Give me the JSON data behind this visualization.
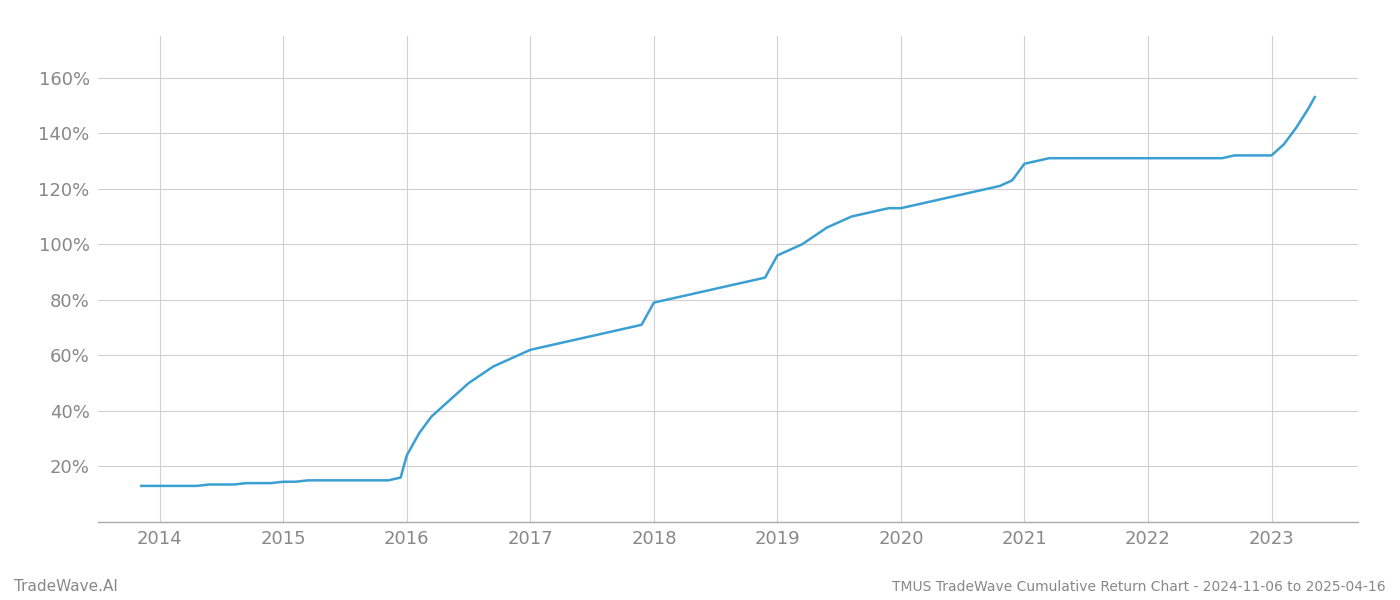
{
  "title": "TMUS TradeWave Cumulative Return Chart - 2024-11-06 to 2025-04-16",
  "watermark": "TradeWave.AI",
  "line_color": "#3a9fd1",
  "line_width": 1.8,
  "background_color": "#ffffff",
  "grid_color": "#d0d0d0",
  "x_labels": [
    "2014",
    "2015",
    "2016",
    "2017",
    "2018",
    "2019",
    "2020",
    "2021",
    "2022",
    "2023"
  ],
  "y_ticks": [
    20,
    40,
    60,
    80,
    100,
    120,
    140,
    160
  ],
  "ylim": [
    0,
    175
  ],
  "xlim": [
    2013.5,
    2023.7
  ],
  "data_x": [
    2013.85,
    2014.0,
    2014.1,
    2014.2,
    2014.3,
    2014.4,
    2014.5,
    2014.6,
    2014.7,
    2014.8,
    2014.9,
    2015.0,
    2015.1,
    2015.2,
    2015.3,
    2015.4,
    2015.5,
    2015.6,
    2015.65,
    2015.75,
    2015.85,
    2015.95,
    2016.0,
    2016.1,
    2016.2,
    2016.3,
    2016.4,
    2016.5,
    2016.6,
    2016.7,
    2016.8,
    2016.9,
    2017.0,
    2017.1,
    2017.2,
    2017.3,
    2017.4,
    2017.5,
    2017.6,
    2017.7,
    2017.8,
    2017.9,
    2018.0,
    2018.1,
    2018.2,
    2018.3,
    2018.4,
    2018.5,
    2018.6,
    2018.7,
    2018.8,
    2018.9,
    2019.0,
    2019.1,
    2019.2,
    2019.3,
    2019.4,
    2019.5,
    2019.6,
    2019.7,
    2019.8,
    2019.9,
    2020.0,
    2020.1,
    2020.2,
    2020.3,
    2020.4,
    2020.5,
    2020.6,
    2020.7,
    2020.8,
    2020.9,
    2021.0,
    2021.1,
    2021.2,
    2021.3,
    2021.4,
    2021.5,
    2021.6,
    2021.7,
    2021.8,
    2021.9,
    2022.0,
    2022.1,
    2022.2,
    2022.3,
    2022.4,
    2022.5,
    2022.6,
    2022.7,
    2022.8,
    2022.9,
    2023.0,
    2023.1,
    2023.2,
    2023.3,
    2023.35
  ],
  "data_y": [
    13,
    13,
    13,
    13,
    13,
    13.5,
    13.5,
    13.5,
    14,
    14,
    14,
    14.5,
    14.5,
    15,
    15,
    15,
    15,
    15,
    15,
    15,
    15,
    16,
    24,
    32,
    38,
    42,
    46,
    50,
    53,
    56,
    58,
    60,
    62,
    63,
    64,
    65,
    66,
    67,
    68,
    69,
    70,
    71,
    79,
    80,
    81,
    82,
    83,
    84,
    85,
    86,
    87,
    88,
    96,
    98,
    100,
    103,
    106,
    108,
    110,
    111,
    112,
    113,
    113,
    114,
    115,
    116,
    117,
    118,
    119,
    120,
    121,
    123,
    129,
    130,
    131,
    131,
    131,
    131,
    131,
    131,
    131,
    131,
    131,
    131,
    131,
    131,
    131,
    131,
    131,
    132,
    132,
    132,
    132,
    136,
    142,
    149,
    153
  ]
}
